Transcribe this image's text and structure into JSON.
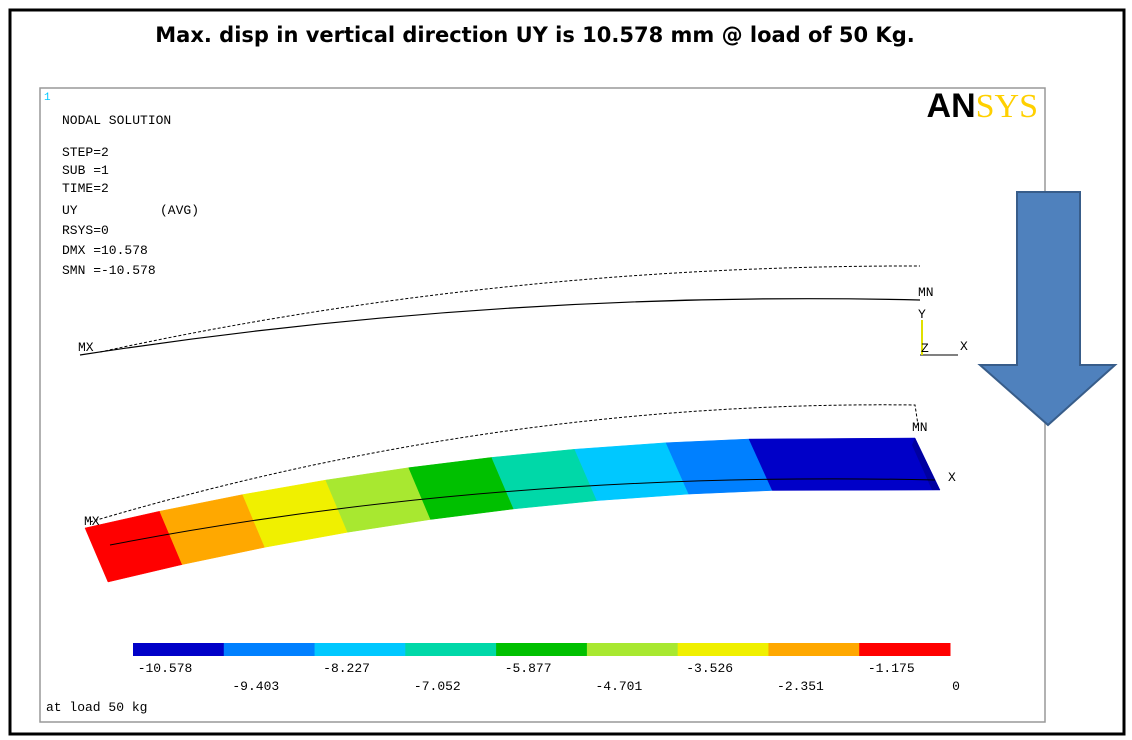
{
  "header": {
    "title": "Max. disp in vertical direction UY is 10.578 mm @ load of 50 Kg."
  },
  "plot": {
    "window_number": "1",
    "logo": {
      "dark": "AN",
      "light": "SYS"
    },
    "info": [
      "NODAL SOLUTION",
      "STEP=2",
      "SUB =1",
      "TIME=2",
      "UY",
      "(AVG)",
      "RSYS=0",
      "DMX =10.578",
      "SMN =-10.578"
    ],
    "markers": {
      "max": "MX",
      "min": "MN"
    },
    "axes": {
      "x": "X",
      "y": "Y",
      "z": "Z"
    },
    "colorbar": {
      "colors": [
        "#0000c8",
        "#0080ff",
        "#00c8ff",
        "#00d8a8",
        "#00c000",
        "#a8e830",
        "#f0f000",
        "#ffa800",
        "#ff0000"
      ],
      "labels": [
        "-10.578",
        "-9.403",
        "-8.227",
        "-7.052",
        "-5.877",
        "-4.701",
        "-3.526",
        "-2.351",
        "-1.175",
        "0"
      ]
    },
    "footer": "at load 50 kg"
  }
}
